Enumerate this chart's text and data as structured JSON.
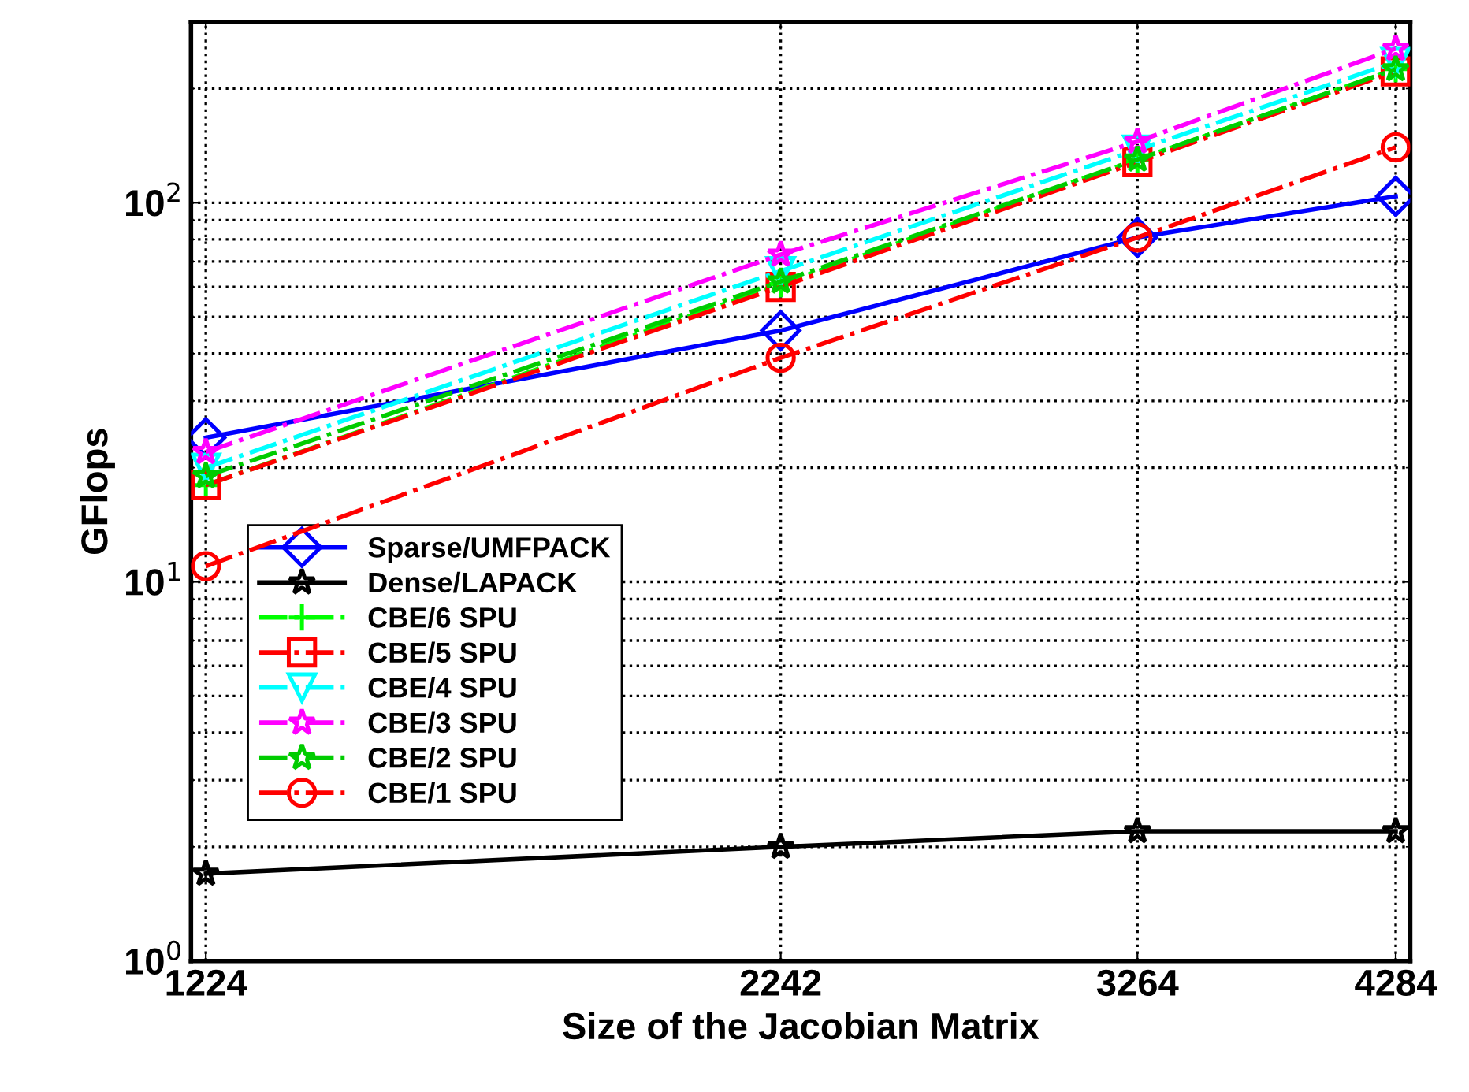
{
  "chart_data": {
    "type": "line",
    "xlabel": "Size of the Jacobian Matrix",
    "ylabel": "GFlops",
    "log": "xy",
    "x": [
      1224,
      2242,
      3264,
      4284
    ],
    "xlim": [
      1205,
      4350
    ],
    "xticks": [
      1224,
      2242,
      3264,
      4284
    ],
    "ylim": [
      1,
      300
    ],
    "yticks": [
      {
        "value": 1,
        "label": "10$^{0}$"
      },
      {
        "value": 10,
        "label": "10$^{1}$"
      },
      {
        "value": 100,
        "label": "10$^{2}$"
      }
    ],
    "grid": true,
    "legend": "bottom left",
    "series": [
      {
        "name": "Sparse/UMFPACK",
        "color": "#0000ff",
        "marker": "diamond",
        "line_style": "solid",
        "values": [
          24,
          46,
          81,
          104
        ]
      },
      {
        "name": "Dense/LAPACK",
        "color": "#000000",
        "marker": "star",
        "line_style": "solid",
        "values": [
          1.7,
          2.0,
          2.2,
          2.2
        ]
      },
      {
        "name": "CBE/6 SPU",
        "color": "#00ff00",
        "marker": "cross",
        "line_style": "dashed",
        "values": [
          18,
          61,
          130,
          225
        ]
      },
      {
        "name": "CBE/5 SPU",
        "color": "#ff0000",
        "marker": "square",
        "line_style": "dashed",
        "values": [
          18,
          60,
          128,
          222
        ]
      },
      {
        "name": "CBE/4 SPU",
        "color": "#00ffff",
        "marker": "triangle",
        "line_style": "dashed",
        "values": [
          20,
          66,
          138,
          235
        ]
      },
      {
        "name": "CBE/3 SPU",
        "color": "#ff00ff",
        "marker": "star",
        "line_style": "dashed",
        "values": [
          22,
          73,
          145,
          255
        ]
      },
      {
        "name": "CBE/2 SPU",
        "color": "#00cc00",
        "marker": "star",
        "line_style": "dashed",
        "values": [
          19,
          62,
          130,
          225
        ]
      },
      {
        "name": "CBE/1 SPU",
        "color": "#ff0000",
        "marker": "circle",
        "line_style": "dashed",
        "values": [
          11,
          39,
          81,
          140
        ]
      }
    ]
  }
}
